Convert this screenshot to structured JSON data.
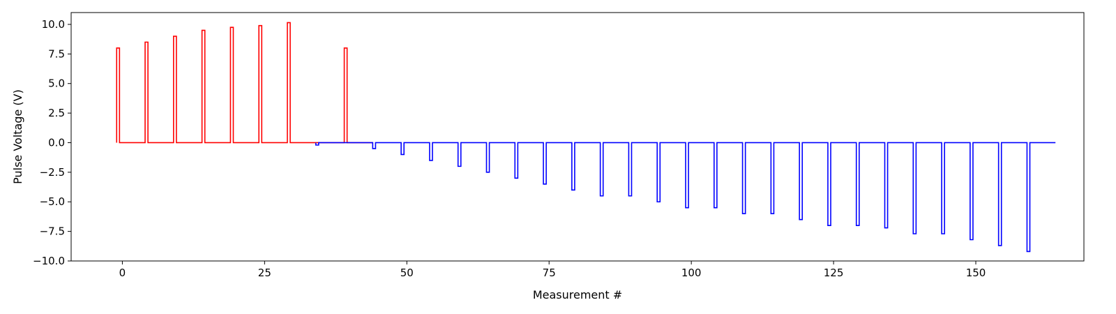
{
  "chart_data": {
    "type": "line",
    "title": "",
    "xlabel": "Measurement #",
    "ylabel": "Pulse Voltage (V)",
    "xlim": [
      -9.0,
      169.0
    ],
    "ylim": [
      -10.0,
      11.0
    ],
    "xticks": [
      0,
      25,
      50,
      75,
      100,
      125,
      150
    ],
    "yticks": [
      -10.0,
      -7.5,
      -5.0,
      -2.5,
      0.0,
      2.5,
      5.0,
      7.5,
      10.0
    ],
    "ytick_labels": [
      "−10.0",
      "−7.5",
      "−5.0",
      "−2.5",
      "0.0",
      "2.5",
      "5.0",
      "7.5",
      "10.0"
    ],
    "grid": false,
    "series": [
      {
        "color": "#ff0000",
        "start": -1,
        "end": 44,
        "pulse_width": 0.5,
        "pulse_x": [
          -1,
          4,
          9,
          14,
          19,
          24,
          29,
          34,
          39
        ],
        "pulse_y": [
          8.0,
          8.5,
          9.0,
          9.5,
          9.75,
          9.9,
          10.15,
          0.0,
          8.0
        ]
      },
      {
        "color": "#0000ff",
        "start": 34,
        "end": 164,
        "pulse_width": 0.5,
        "pulse_x": [
          34,
          44,
          49,
          54,
          59,
          64,
          69,
          74,
          79,
          84,
          89,
          94,
          99,
          104,
          109,
          114,
          119,
          124,
          129,
          134,
          139,
          144,
          149,
          154,
          159
        ],
        "pulse_y": [
          -0.2,
          -0.5,
          -1.0,
          -1.5,
          -2.0,
          -2.5,
          -3.0,
          -3.5,
          -4.0,
          -4.5,
          -4.5,
          -5.0,
          -5.5,
          -5.5,
          -6.0,
          -6.0,
          -6.5,
          -7.0,
          -7.0,
          -7.2,
          -7.7,
          -7.7,
          -8.2,
          -8.7,
          -9.2
        ]
      }
    ]
  }
}
